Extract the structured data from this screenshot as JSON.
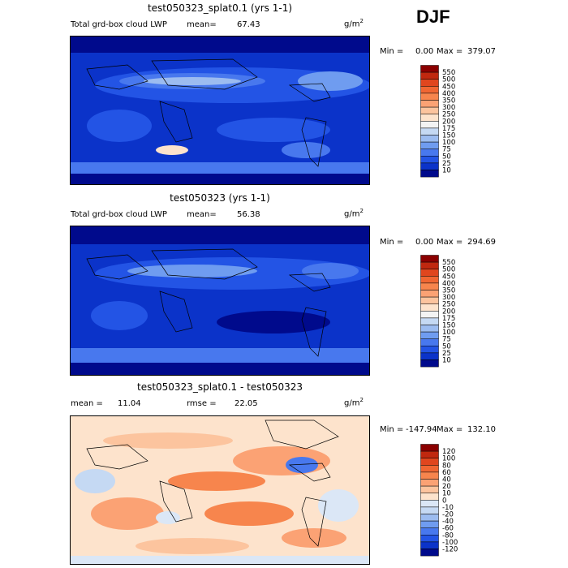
{
  "season": "DJF",
  "panels": [
    {
      "title": "test050323_splat0.1 (yrs 1-1)",
      "field": "Total grd-box cloud LWP",
      "mean_label": "mean=",
      "mean": "67.43",
      "unit": "g/m",
      "unit_sup": "2",
      "min_label": "Min =",
      "min": "0.00",
      "max_label": "Max =",
      "max": "379.07",
      "scale": "lwp"
    },
    {
      "title": "test050323 (yrs 1-1)",
      "field": "Total grd-box cloud LWP",
      "mean_label": "mean=",
      "mean": "56.38",
      "unit": "g/m",
      "unit_sup": "2",
      "min_label": "Min =",
      "min": "0.00",
      "max_label": "Max =",
      "max": "294.69",
      "scale": "lwp"
    },
    {
      "title": "test050323_splat0.1 - test050323",
      "field": "",
      "mean_label": "mean =",
      "mean": "11.04",
      "rmse_label": "rmse =",
      "rmse": "22.05",
      "unit": "g/m",
      "unit_sup": "2",
      "min_label": "Min =",
      "min": "-147.94",
      "max_label": "Max =",
      "max": "132.10",
      "scale": "diff"
    }
  ],
  "colorbars": {
    "lwp": {
      "labels": [
        "550",
        "500",
        "450",
        "400",
        "350",
        "300",
        "250",
        "200",
        "175",
        "150",
        "100",
        "75",
        "50",
        "25",
        "10"
      ],
      "colors": [
        "#8b0000",
        "#c0280f",
        "#e0461e",
        "#f06632",
        "#f7854d",
        "#fba274",
        "#fcc49e",
        "#fde3cc",
        "#f3f3f3",
        "#c5d9f3",
        "#9cbcf0",
        "#6f9cf0",
        "#4878ee",
        "#2354e5",
        "#0b33c9",
        "#000a8c"
      ]
    },
    "diff": {
      "labels": [
        "120",
        "100",
        "80",
        "60",
        "40",
        "20",
        "10",
        "0",
        "-10",
        "-20",
        "-40",
        "-60",
        "-80",
        "-100",
        "-120"
      ],
      "colors": [
        "#8b0000",
        "#c0280f",
        "#e0461e",
        "#f06632",
        "#f7854d",
        "#fba274",
        "#fcc49e",
        "#fde3cc",
        "#dbe7f6",
        "#c5d9f3",
        "#9cbcf0",
        "#6f9cf0",
        "#4878ee",
        "#2354e5",
        "#0b33c9",
        "#000a8c"
      ]
    }
  },
  "chart_data": [
    {
      "type": "heatmap",
      "title": "test050323_splat0.1 (yrs 1-1)",
      "variable": "Total grd-box cloud LWP",
      "units": "g/m2",
      "mean": 67.43,
      "min": 0.0,
      "max": 379.07,
      "contour_levels": [
        10,
        25,
        50,
        75,
        100,
        150,
        175,
        200,
        250,
        300,
        350,
        400,
        450,
        500,
        550
      ]
    },
    {
      "type": "heatmap",
      "title": "test050323 (yrs 1-1)",
      "variable": "Total grd-box cloud LWP",
      "units": "g/m2",
      "mean": 56.38,
      "min": 0.0,
      "max": 294.69,
      "contour_levels": [
        10,
        25,
        50,
        75,
        100,
        150,
        175,
        200,
        250,
        300,
        350,
        400,
        450,
        500,
        550
      ]
    },
    {
      "type": "heatmap",
      "title": "test050323_splat0.1 - test050323",
      "units": "g/m2",
      "mean": 11.04,
      "rmse": 22.05,
      "min": -147.94,
      "max": 132.1,
      "contour_levels": [
        -120,
        -100,
        -80,
        -60,
        -40,
        -20,
        -10,
        0,
        10,
        20,
        40,
        60,
        80,
        100,
        120
      ]
    }
  ]
}
